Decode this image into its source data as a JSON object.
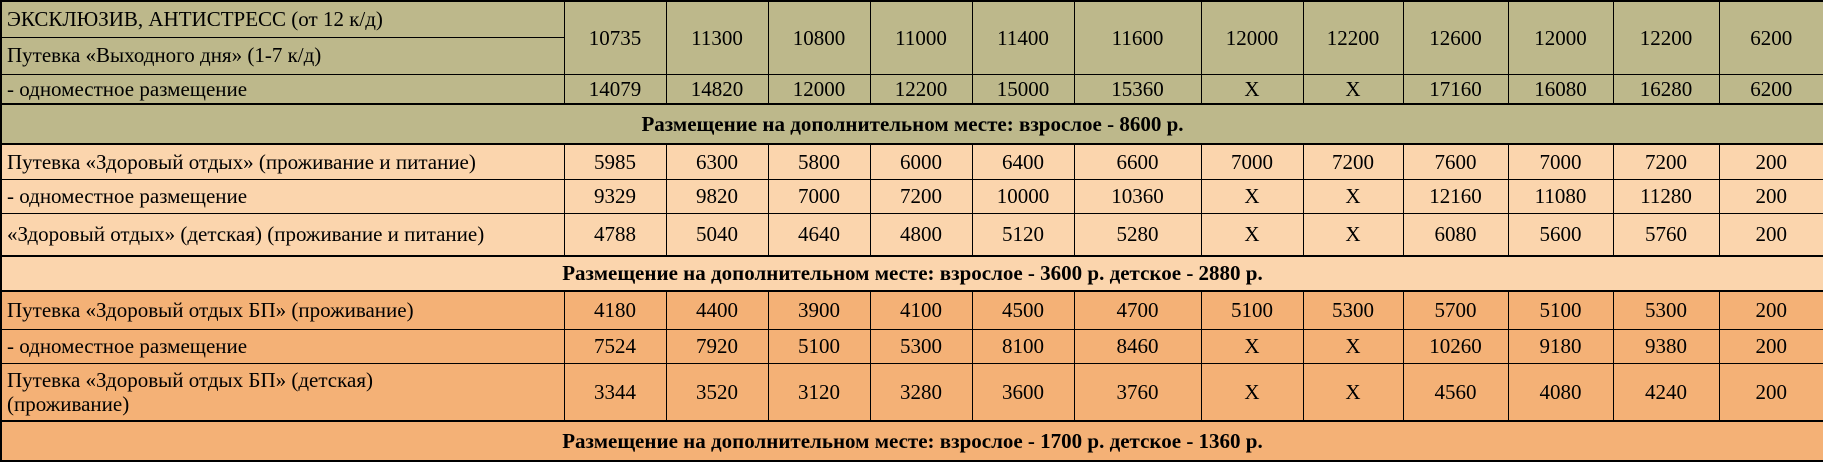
{
  "colors": {
    "khaki": "#bdb88b",
    "peach": "#fbd5ad",
    "orange": "#f4b176",
    "border": "#000000",
    "text": "#000000"
  },
  "rows": [
    {
      "kind": "group-start-label",
      "section": "khaki",
      "label": "ЭКСКЛЮЗИВ, АНТИСТРЕСС (от 12 к/д)",
      "values": [
        "10735",
        "11300",
        "10800",
        "11000",
        "11400",
        "11600",
        "12000",
        "12200",
        "12600",
        "12000",
        "12200",
        "6200"
      ]
    },
    {
      "kind": "label-only",
      "section": "khaki",
      "label": "Путевка «Выходного дня» (1-7 к/д)"
    },
    {
      "kind": "data",
      "section": "khaki",
      "label": "- одноместное размещение",
      "values": [
        "14079",
        "14820",
        "12000",
        "12200",
        "15000",
        "15360",
        "Х",
        "Х",
        "17160",
        "16080",
        "16280",
        "6200"
      ]
    },
    {
      "kind": "band",
      "section": "khaki",
      "text": "Размещение на дополнительном месте: взрослое - 8600 р."
    },
    {
      "kind": "data",
      "section": "peach",
      "label": "Путевка «Здоровый отдых» (проживание и питание)",
      "values": [
        "5985",
        "6300",
        "5800",
        "6000",
        "6400",
        "6600",
        "7000",
        "7200",
        "7600",
        "7000",
        "7200",
        "200"
      ]
    },
    {
      "kind": "data",
      "section": "peach",
      "label": "- одноместное размещение",
      "values": [
        "9329",
        "9820",
        "7000",
        "7200",
        "10000",
        "10360",
        "Х",
        "Х",
        "12160",
        "11080",
        "11280",
        "200"
      ]
    },
    {
      "kind": "data",
      "section": "peach",
      "label": "«Здоровый отдых» (детская) (проживание и питание)",
      "values": [
        "4788",
        "5040",
        "4640",
        "4800",
        "5120",
        "5280",
        "Х",
        "Х",
        "6080",
        "5600",
        "5760",
        "200"
      ]
    },
    {
      "kind": "band",
      "section": "peach",
      "text": "Размещение на дополнительном месте: взрослое - 3600 р. детское - 2880 р."
    },
    {
      "kind": "data",
      "section": "orange",
      "label": "Путевка «Здоровый отдых БП» (проживание)",
      "values": [
        "4180",
        "4400",
        "3900",
        "4100",
        "4500",
        "4700",
        "5100",
        "5300",
        "5700",
        "5100",
        "5300",
        "200"
      ]
    },
    {
      "kind": "data",
      "section": "orange",
      "label": "- одноместное размещение",
      "values": [
        "7524",
        "7920",
        "5100",
        "5300",
        "8100",
        "8460",
        "Х",
        "Х",
        "10260",
        "9180",
        "9380",
        "200"
      ]
    },
    {
      "kind": "data",
      "section": "orange",
      "label": "Путевка «Здоровый отдых БП» (детская)\n(проживание)",
      "values": [
        "3344",
        "3520",
        "3120",
        "3280",
        "3600",
        "3760",
        "Х",
        "Х",
        "4560",
        "4080",
        "4240",
        "200"
      ]
    },
    {
      "kind": "band",
      "section": "orange",
      "text": "Размещение на дополнительном месте: взрослое - 1700 р. детское - 1360 р."
    }
  ]
}
